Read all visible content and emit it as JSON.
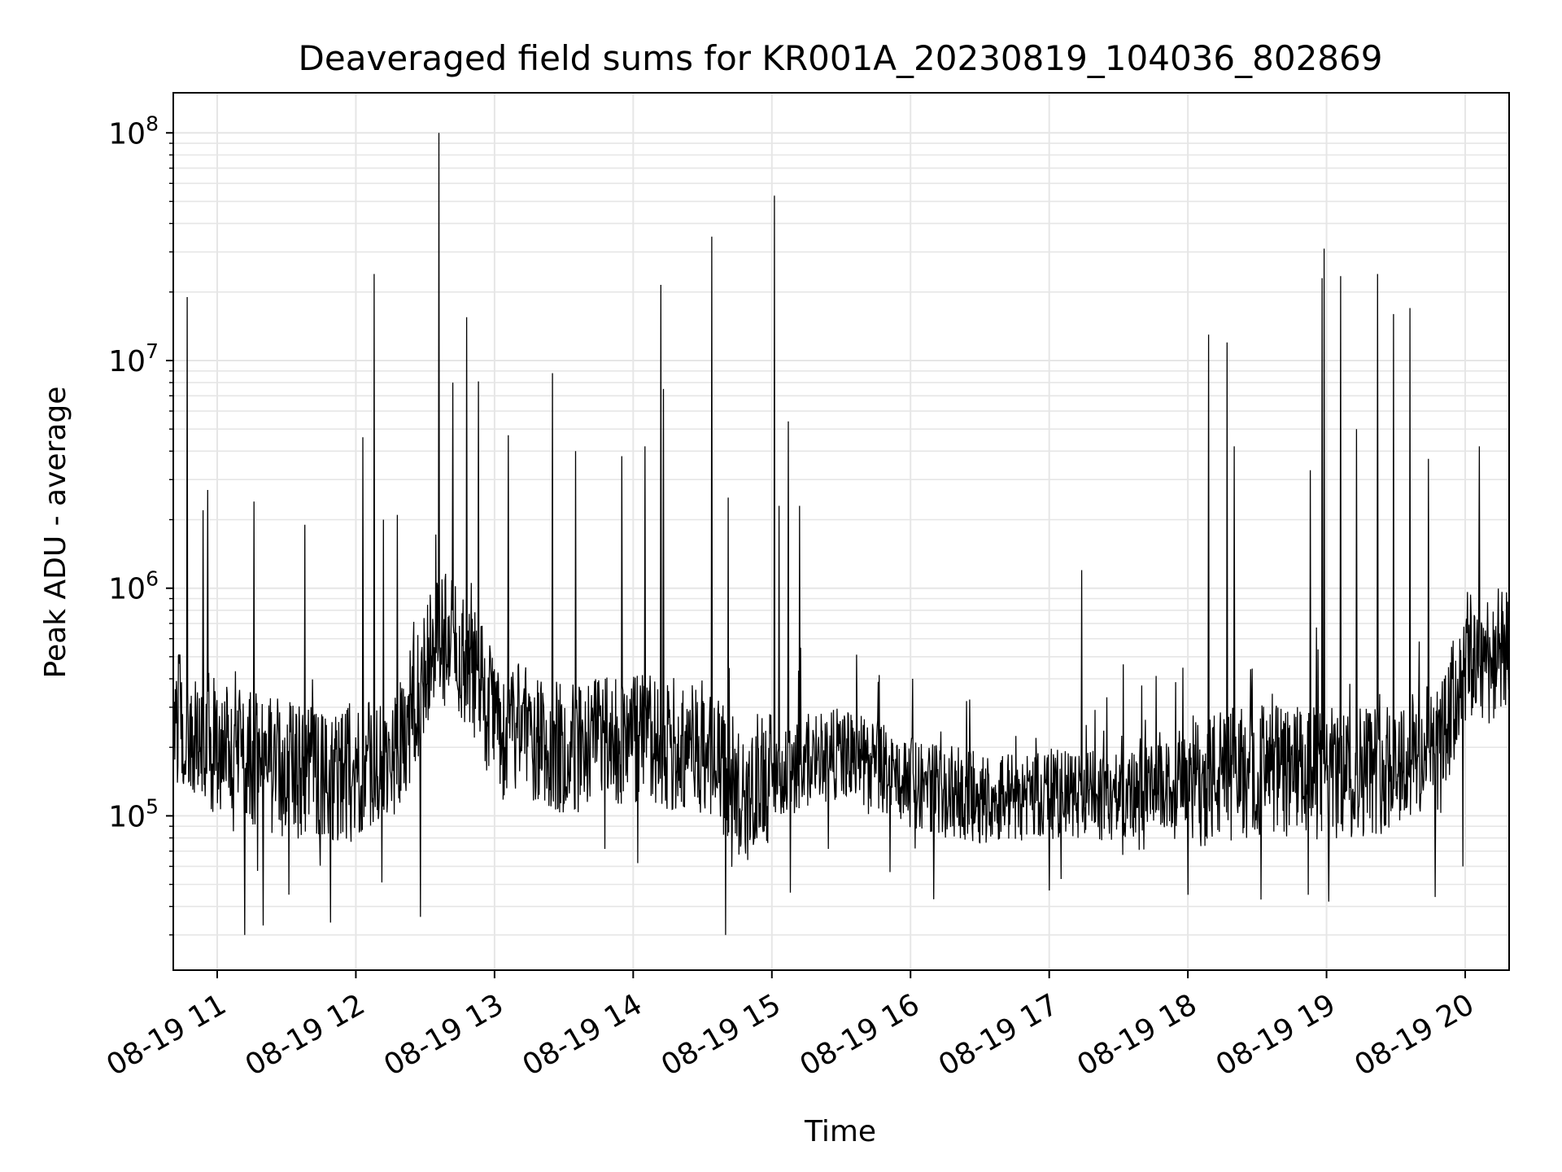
{
  "chart_data": {
    "type": "line",
    "title": "Deaveraged field sums for KR001A_20230819_104036_802869",
    "xlabel": "Time",
    "ylabel": "Peak ADU - average",
    "y_scale": "log",
    "ylim": [
      21000,
      150000000
    ],
    "xlim": [
      "2023-08-19 10:41",
      "2023-08-19 20:19"
    ],
    "x_ticks": [
      "08-19 11",
      "08-19 12",
      "08-19 13",
      "08-19 14",
      "08-19 15",
      "08-19 16",
      "08-19 17",
      "08-19 18",
      "08-19 19",
      "08-19 20"
    ],
    "y_ticks": [
      {
        "base": "10",
        "exp": "5",
        "value": 100000
      },
      {
        "base": "10",
        "exp": "6",
        "value": 1000000
      },
      {
        "base": "10",
        "exp": "7",
        "value": 10000000
      },
      {
        "base": "10",
        "exp": "8",
        "value": 100000000
      }
    ],
    "grid": true,
    "line_color": "#000000",
    "series": [
      {
        "baseline_x": [
          "2023-08-19 10:41",
          "2023-08-19 11:00",
          "2023-08-19 11:30",
          "2023-08-19 12:00",
          "2023-08-19 12:20",
          "2023-08-19 12:35",
          "2023-08-19 12:50",
          "2023-08-19 13:00",
          "2023-08-19 13:30",
          "2023-08-19 14:00",
          "2023-08-19 14:30",
          "2023-08-19 14:45",
          "2023-08-19 15:00",
          "2023-08-19 15:30",
          "2023-08-19 16:00",
          "2023-08-19 16:15",
          "2023-08-19 16:30",
          "2023-08-19 17:00",
          "2023-08-19 17:30",
          "2023-08-19 18:00",
          "2023-08-19 18:30",
          "2023-08-19 19:00",
          "2023-08-19 19:30",
          "2023-08-19 19:50",
          "2023-08-19 20:00",
          "2023-08-19 20:19"
        ],
        "baseline_y": [
          280000,
          200000,
          160000,
          150000,
          200000,
          650000,
          450000,
          250000,
          200000,
          210000,
          200000,
          130000,
          150000,
          190000,
          140000,
          130000,
          120000,
          125000,
          120000,
          140000,
          160000,
          150000,
          170000,
          200000,
          480000,
          520000
        ]
      },
      {
        "peaks_x": [
          "2023-08-19 10:47",
          "2023-08-19 10:54",
          "2023-08-19 10:56",
          "2023-08-19 11:16",
          "2023-08-19 11:38",
          "2023-08-19 12:03",
          "2023-08-19 12:08",
          "2023-08-19 12:12",
          "2023-08-19 12:18",
          "2023-08-19 12:36",
          "2023-08-19 12:42",
          "2023-08-19 12:48",
          "2023-08-19 12:53",
          "2023-08-19 13:06",
          "2023-08-19 13:25",
          "2023-08-19 13:35",
          "2023-08-19 13:55",
          "2023-08-19 14:05",
          "2023-08-19 14:12",
          "2023-08-19 14:13",
          "2023-08-19 14:34",
          "2023-08-19 14:41",
          "2023-08-19 15:01",
          "2023-08-19 15:03",
          "2023-08-19 15:07",
          "2023-08-19 15:12",
          "2023-08-19 16:01",
          "2023-08-19 17:14",
          "2023-08-19 18:09",
          "2023-08-19 18:17",
          "2023-08-19 18:20",
          "2023-08-19 18:53",
          "2023-08-19 18:58",
          "2023-08-19 18:59",
          "2023-08-19 19:06",
          "2023-08-19 19:13",
          "2023-08-19 19:22",
          "2023-08-19 19:29",
          "2023-08-19 19:36",
          "2023-08-19 19:44",
          "2023-08-19 20:06"
        ],
        "peaks_y": [
          19000000,
          2200000,
          2700000,
          2400000,
          1900000,
          4600000,
          24000000,
          2000000,
          2100000,
          100000000,
          8000000,
          15500000,
          8100000,
          4700000,
          8800000,
          4000000,
          3800000,
          4200000,
          21500000,
          7500000,
          35000000,
          2500000,
          53000000,
          2300000,
          5400000,
          2300000,
          400000,
          1200000,
          13000000,
          12000000,
          4200000,
          3300000,
          23000000,
          31000000,
          23500000,
          5000000,
          24000000,
          16000000,
          17000000,
          3700000,
          4200000
        ]
      },
      {
        "troughs_x": [
          "2023-08-19 11:12",
          "2023-08-19 11:20",
          "2023-08-19 11:49",
          "2023-08-19 12:28",
          "2023-08-19 14:02",
          "2023-08-19 14:40",
          "2023-08-19 15:08",
          "2023-08-19 16:10",
          "2023-08-19 17:00",
          "2023-08-19 18:00",
          "2023-08-19 18:52",
          "2023-08-19 19:01",
          "2023-08-19 19:47",
          "2023-08-19 19:59"
        ],
        "troughs_y": [
          30000,
          33000,
          34000,
          36000,
          62000,
          30000,
          46000,
          43000,
          47000,
          45000,
          45000,
          42000,
          44000,
          60000
        ]
      }
    ]
  }
}
